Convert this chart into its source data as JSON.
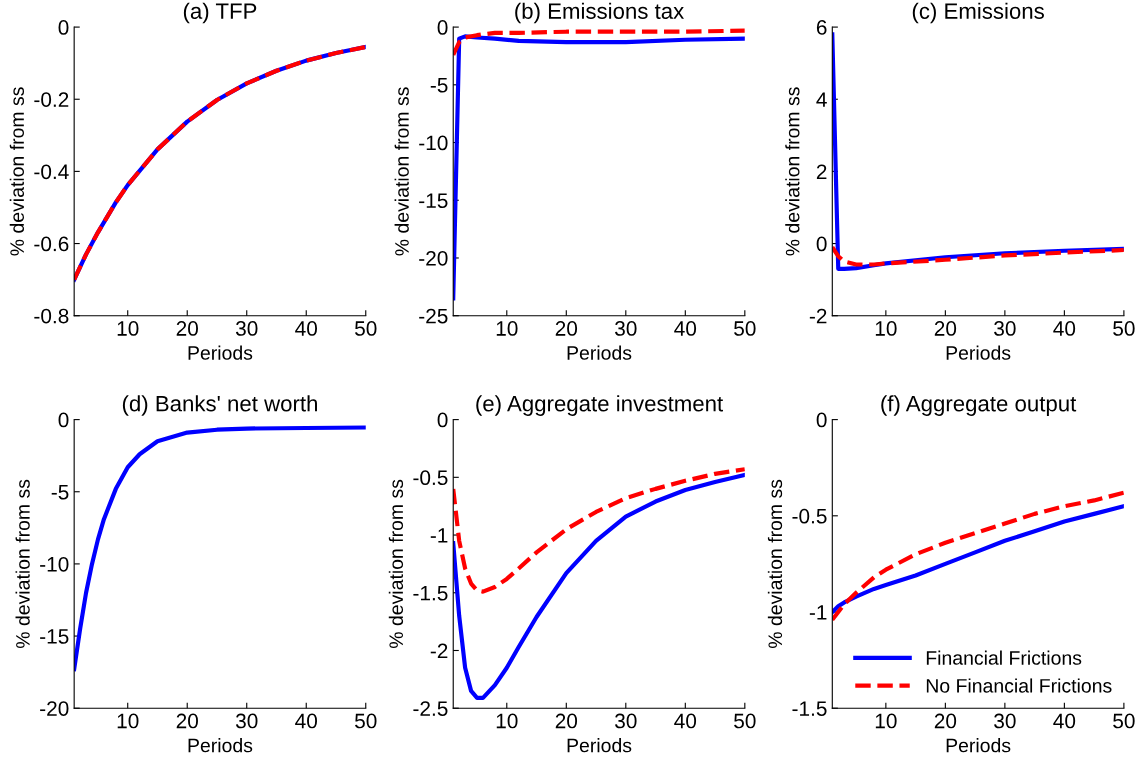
{
  "chart_data": [
    {
      "type": "line",
      "title": "(a) TFP",
      "xlabel": "Periods",
      "ylabel": "% deviation from ss",
      "x": [
        1,
        3,
        5,
        8,
        10,
        15,
        20,
        25,
        30,
        35,
        40,
        45,
        50
      ],
      "xlim": [
        1,
        50
      ],
      "xticks": [
        10,
        20,
        30,
        40,
        50
      ],
      "ylim": [
        -0.8,
        0
      ],
      "yticks": [
        -0.8,
        -0.6,
        -0.4,
        -0.2,
        0
      ],
      "grid": false,
      "legend": false,
      "series": [
        {
          "color": "#0000ff",
          "line_style": "solid",
          "values": [
            -0.7,
            -0.63,
            -0.569,
            -0.486,
            -0.438,
            -0.339,
            -0.262,
            -0.202,
            -0.156,
            -0.121,
            -0.093,
            -0.072,
            -0.055
          ]
        },
        {
          "color": "#ff0000",
          "line_style": "dashed",
          "values": [
            -0.7,
            -0.63,
            -0.569,
            -0.486,
            -0.438,
            -0.339,
            -0.262,
            -0.202,
            -0.156,
            -0.121,
            -0.093,
            -0.072,
            -0.055
          ]
        }
      ]
    },
    {
      "type": "line",
      "title": "(b) Emissions tax",
      "xlabel": "Periods",
      "ylabel": "% deviation from ss",
      "x": [
        1,
        2,
        3,
        5,
        8,
        12,
        20,
        30,
        40,
        50
      ],
      "xlim": [
        1,
        50
      ],
      "xticks": [
        10,
        20,
        30,
        40,
        50
      ],
      "ylim": [
        -25,
        0
      ],
      "yticks": [
        -25,
        -20,
        -15,
        -10,
        -5,
        0
      ],
      "grid": false,
      "legend": false,
      "series": [
        {
          "color": "#0000ff",
          "line_style": "solid",
          "values": [
            -23.5,
            -1.0,
            -0.8,
            -0.9,
            -1.0,
            -1.2,
            -1.3,
            -1.3,
            -1.1,
            -1.0
          ]
        },
        {
          "color": "#ff0000",
          "line_style": "dashed",
          "values": [
            -2.4,
            -1.3,
            -0.9,
            -0.7,
            -0.5,
            -0.5,
            -0.4,
            -0.4,
            -0.4,
            -0.3
          ]
        }
      ]
    },
    {
      "type": "line",
      "title": "(c) Emissions",
      "xlabel": "Periods",
      "ylabel": "% deviation from ss",
      "x": [
        1,
        2,
        3,
        5,
        8,
        10,
        20,
        30,
        40,
        50
      ],
      "xlim": [
        1,
        50
      ],
      "xticks": [
        10,
        20,
        30,
        40,
        50
      ],
      "ylim": [
        -2,
        6
      ],
      "yticks": [
        -2,
        0,
        2,
        4,
        6
      ],
      "grid": false,
      "legend": false,
      "series": [
        {
          "color": "#0000ff",
          "line_style": "solid",
          "values": [
            5.8,
            -0.7,
            -0.7,
            -0.68,
            -0.6,
            -0.55,
            -0.38,
            -0.27,
            -0.2,
            -0.15
          ]
        },
        {
          "color": "#ff0000",
          "line_style": "dashed",
          "values": [
            -0.1,
            -0.35,
            -0.5,
            -0.58,
            -0.58,
            -0.55,
            -0.45,
            -0.33,
            -0.25,
            -0.18
          ]
        }
      ]
    },
    {
      "type": "line",
      "title": "(d) Banks' net worth",
      "xlabel": "Periods",
      "ylabel": "% deviation from ss",
      "x": [
        1,
        2,
        3,
        4,
        5,
        6,
        8,
        10,
        12,
        15,
        20,
        25,
        30,
        40,
        50
      ],
      "xlim": [
        1,
        50
      ],
      "xticks": [
        10,
        20,
        30,
        40,
        50
      ],
      "ylim": [
        -20,
        0
      ],
      "yticks": [
        -20,
        -15,
        -10,
        -5,
        0
      ],
      "grid": false,
      "legend": false,
      "series": [
        {
          "color": "#0000ff",
          "line_style": "solid",
          "values": [
            -17.3,
            -14.5,
            -12,
            -10,
            -8.3,
            -6.9,
            -4.8,
            -3.3,
            -2.4,
            -1.5,
            -0.9,
            -0.7,
            -0.62,
            -0.58,
            -0.55
          ]
        }
      ]
    },
    {
      "type": "line",
      "title": "(e) Aggregate investment",
      "xlabel": "Periods",
      "ylabel": "% deviation from ss",
      "x": [
        1,
        2,
        3,
        4,
        5,
        6,
        8,
        10,
        12,
        15,
        20,
        25,
        30,
        35,
        40,
        45,
        50
      ],
      "xlim": [
        1,
        50
      ],
      "xticks": [
        10,
        20,
        30,
        40,
        50
      ],
      "ylim": [
        -2.5,
        0
      ],
      "yticks": [
        -2.5,
        -2,
        -1.5,
        -1,
        -0.5,
        0
      ],
      "grid": false,
      "legend": false,
      "series": [
        {
          "color": "#0000ff",
          "line_style": "solid",
          "values": [
            -1.07,
            -1.7,
            -2.15,
            -2.35,
            -2.41,
            -2.41,
            -2.3,
            -2.15,
            -1.97,
            -1.71,
            -1.33,
            -1.05,
            -0.84,
            -0.71,
            -0.61,
            -0.54,
            -0.48
          ]
        },
        {
          "color": "#ff0000",
          "line_style": "dashed",
          "values": [
            -0.6,
            -1.05,
            -1.29,
            -1.42,
            -1.48,
            -1.49,
            -1.45,
            -1.38,
            -1.29,
            -1.15,
            -0.95,
            -0.8,
            -0.68,
            -0.6,
            -0.53,
            -0.47,
            -0.43
          ]
        }
      ]
    },
    {
      "type": "line",
      "title": "(f) Aggregate output",
      "xlabel": "Periods",
      "ylabel": "% deviation from ss",
      "x": [
        1,
        2,
        3,
        5,
        8,
        10,
        15,
        20,
        25,
        30,
        35,
        40,
        45,
        50
      ],
      "xlim": [
        1,
        50
      ],
      "xticks": [
        10,
        20,
        30,
        40,
        50
      ],
      "ylim": [
        -1.5,
        0
      ],
      "yticks": [
        -1.5,
        -1,
        -0.5,
        0
      ],
      "grid": false,
      "legend": "bottom right",
      "series": [
        {
          "name": "Financial Frictions",
          "color": "#0000ff",
          "line_style": "solid",
          "values": [
            -1.0,
            -0.97,
            -0.95,
            -0.92,
            -0.88,
            -0.86,
            -0.81,
            -0.75,
            -0.69,
            -0.63,
            -0.58,
            -0.53,
            -0.49,
            -0.45
          ]
        },
        {
          "name": "No Financial Frictions",
          "color": "#ff0000",
          "line_style": "dashed",
          "values": [
            -1.04,
            -1.0,
            -0.96,
            -0.9,
            -0.82,
            -0.78,
            -0.7,
            -0.64,
            -0.59,
            -0.54,
            -0.49,
            -0.45,
            -0.42,
            -0.38
          ]
        }
      ]
    }
  ]
}
